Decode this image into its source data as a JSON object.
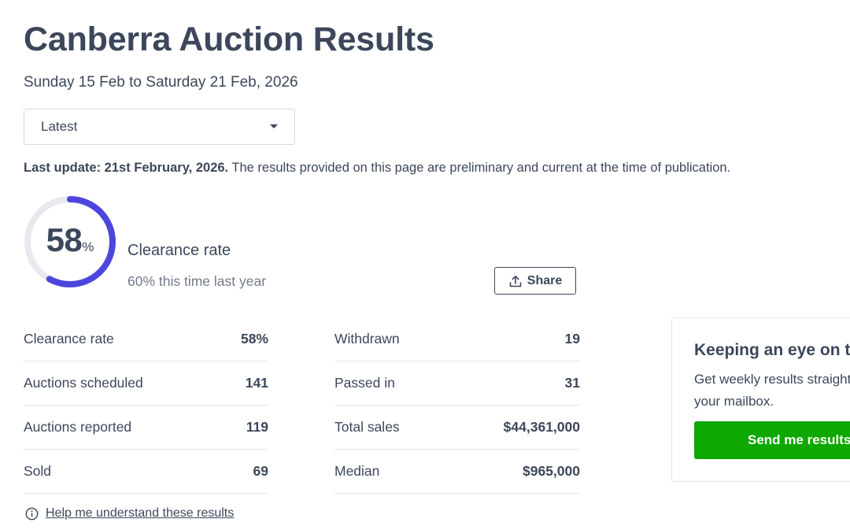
{
  "header": {
    "title": "Canberra Auction Results",
    "date_range": "Sunday 15 Feb to Saturday 21 Feb, 2026"
  },
  "period_select": {
    "selected": "Latest"
  },
  "update": {
    "label": "Last update: 21st February, 2026.",
    "text": " The results provided on this page are preliminary and current at the time of publication."
  },
  "summary": {
    "clearance_value": "58",
    "clearance_unit": "%",
    "clearance_fraction": 0.58,
    "clearance_label": "Clearance rate",
    "last_year_text": "60% this time last year",
    "share_label": "Share",
    "ring_color": "#4d46dd",
    "ring_track_color": "#e7e9ee"
  },
  "stats_left": [
    {
      "label": "Clearance rate",
      "value": "58%"
    },
    {
      "label": "Auctions scheduled",
      "value": "141"
    },
    {
      "label": "Auctions reported",
      "value": "119"
    },
    {
      "label": "Sold",
      "value": "69"
    }
  ],
  "stats_right": [
    {
      "label": "Withdrawn",
      "value": "19"
    },
    {
      "label": "Passed in",
      "value": "31"
    },
    {
      "label": "Total sales",
      "value": "$44,361,000"
    },
    {
      "label": "Median",
      "value": "$965,000"
    }
  ],
  "help": {
    "link_text": "Help me understand these results",
    "icon": "info-icon"
  },
  "signup": {
    "title": "Keeping an eye on the market?",
    "text": "Get weekly results straight to your mailbox.",
    "button_label": "Send me results",
    "button_color": "#0ea800"
  }
}
